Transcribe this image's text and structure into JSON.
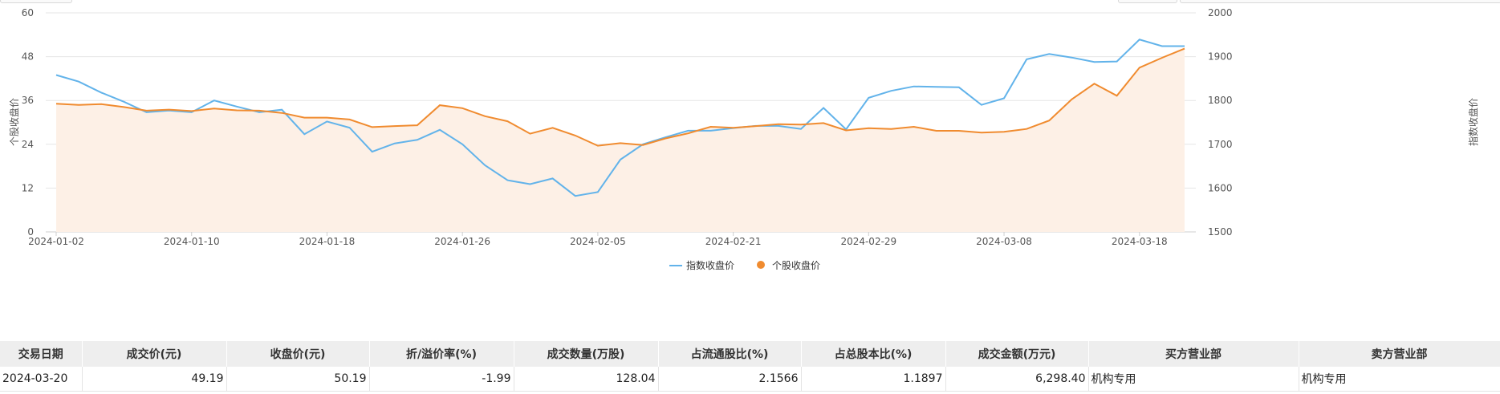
{
  "colors": {
    "index_line": "#62b3ea",
    "stock_line": "#f08b2f",
    "stock_area": "#fdf0e6",
    "grid": "#e6e6e6"
  },
  "legend": {
    "index_label": "指数收盘价",
    "stock_label": "个股收盘价"
  },
  "chart_data": {
    "type": "line",
    "x": [
      "2024-01-02",
      "2024-01-03",
      "2024-01-04",
      "2024-01-05",
      "2024-01-08",
      "2024-01-09",
      "2024-01-10",
      "2024-01-11",
      "2024-01-12",
      "2024-01-15",
      "2024-01-16",
      "2024-01-17",
      "2024-01-18",
      "2024-01-19",
      "2024-01-22",
      "2024-01-23",
      "2024-01-24",
      "2024-01-25",
      "2024-01-26",
      "2024-01-29",
      "2024-01-30",
      "2024-01-31",
      "2024-02-01",
      "2024-02-02",
      "2024-02-05",
      "2024-02-06",
      "2024-02-07",
      "2024-02-08",
      "2024-02-19",
      "2024-02-20",
      "2024-02-21",
      "2024-02-22",
      "2024-02-23",
      "2024-02-26",
      "2024-02-27",
      "2024-02-28",
      "2024-02-29",
      "2024-03-01",
      "2024-03-04",
      "2024-03-05",
      "2024-03-06",
      "2024-03-07",
      "2024-03-08",
      "2024-03-11",
      "2024-03-12",
      "2024-03-13",
      "2024-03-14",
      "2024-03-15",
      "2024-03-18",
      "2024-03-19",
      "2024-03-20"
    ],
    "xticks": [
      "2024-01-02",
      "2024-01-10",
      "2024-01-18",
      "2024-01-26",
      "2024-02-05",
      "2024-02-21",
      "2024-02-29",
      "2024-03-08",
      "2024-03-18"
    ],
    "ylabel_left": "个股收盘价",
    "ylabel_right": "指数收盘价",
    "ylim_left": [
      0,
      60
    ],
    "ylim_right": [
      1500,
      2000
    ],
    "yticks_left": [
      0,
      12,
      24,
      36,
      48,
      60
    ],
    "yticks_right": [
      1500,
      1600,
      1700,
      1800,
      1900,
      2000
    ],
    "grid": true,
    "legend_position": "bottom-center",
    "series": [
      {
        "name": "指数收盘价",
        "axis": "right",
        "values": [
          1858,
          1843,
          1818,
          1797,
          1773,
          1777,
          1773,
          1800,
          1786,
          1773,
          1779,
          1723,
          1752,
          1738,
          1683,
          1702,
          1710,
          1733,
          1700,
          1652,
          1618,
          1609,
          1622,
          1582,
          1591,
          1665,
          1700,
          1716,
          1731,
          1731,
          1737,
          1742,
          1742,
          1735,
          1783,
          1734,
          1806,
          1822,
          1832,
          1831,
          1830,
          1790,
          1805,
          1894,
          1906,
          1898,
          1888,
          1889,
          1939,
          1924,
          1924
        ]
      },
      {
        "name": "个股收盘价",
        "axis": "left",
        "values": [
          35.1,
          34.8,
          35.0,
          34.2,
          33.2,
          33.5,
          33.1,
          33.8,
          33.3,
          33.2,
          32.6,
          31.3,
          31.3,
          30.8,
          28.7,
          29.0,
          29.2,
          34.7,
          33.9,
          31.7,
          30.3,
          26.9,
          28.5,
          26.4,
          23.6,
          24.3,
          23.8,
          25.6,
          27.0,
          28.8,
          28.5,
          29.0,
          29.5,
          29.4,
          29.8,
          27.8,
          28.4,
          28.2,
          28.8,
          27.7,
          27.7,
          27.2,
          27.4,
          28.2,
          30.5,
          36.3,
          40.6,
          37.3,
          45.0,
          47.7,
          50.2
        ]
      }
    ]
  },
  "table": {
    "headers": [
      "交易日期",
      "成交价(元)",
      "收盘价(元)",
      "折/溢价率(%)",
      "成交数量(万股)",
      "占流通股比(%)",
      "占总股本比(%)",
      "成交金额(万元)",
      "买方营业部",
      "卖方营业部"
    ],
    "rows": [
      [
        "2024-03-20",
        "49.19",
        "50.19",
        "-1.99",
        "128.04",
        "2.1566",
        "1.1897",
        "6,298.40",
        "机构专用",
        "机构专用"
      ]
    ]
  }
}
